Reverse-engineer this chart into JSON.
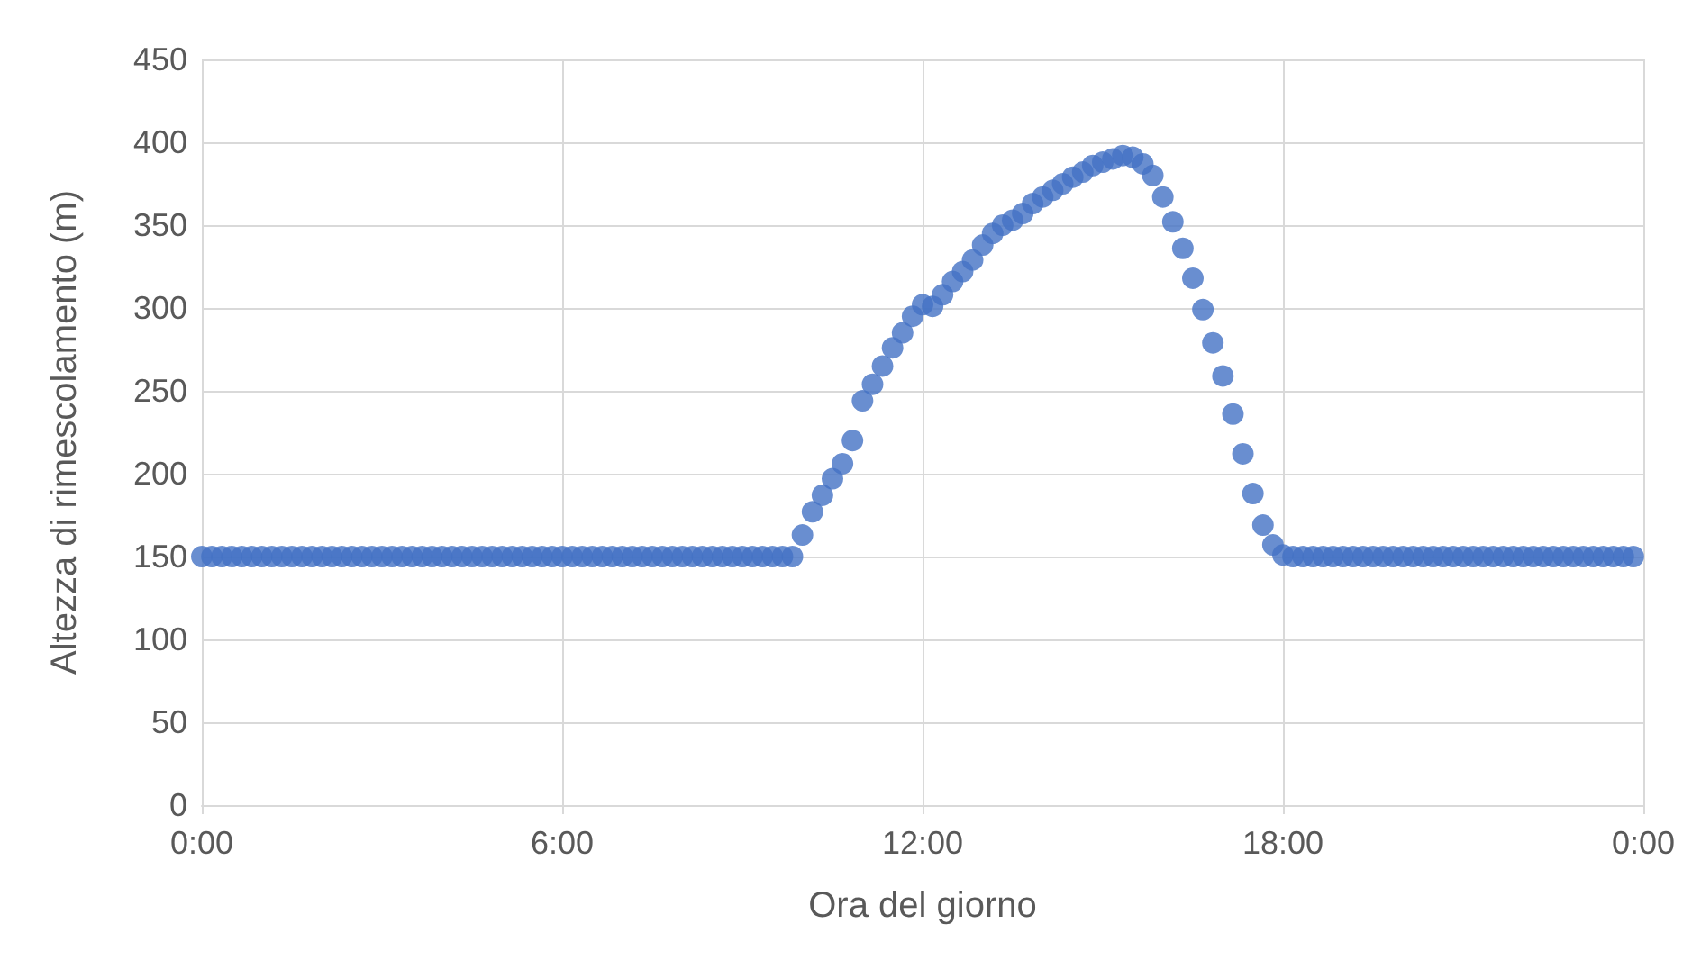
{
  "chart_data": {
    "type": "scatter",
    "xlabel": "Ora del giorno",
    "ylabel": "Altezza di rimescolamento (m)",
    "x": [
      0,
      0.167,
      0.333,
      0.5,
      0.667,
      0.833,
      1,
      1.167,
      1.333,
      1.5,
      1.667,
      1.833,
      2,
      2.167,
      2.333,
      2.5,
      2.667,
      2.833,
      3,
      3.167,
      3.333,
      3.5,
      3.667,
      3.833,
      4,
      4.167,
      4.333,
      4.5,
      4.667,
      4.833,
      5,
      5.167,
      5.333,
      5.5,
      5.667,
      5.833,
      6,
      6.167,
      6.333,
      6.5,
      6.667,
      6.833,
      7,
      7.167,
      7.333,
      7.5,
      7.667,
      7.833,
      8,
      8.167,
      8.333,
      8.5,
      8.667,
      8.833,
      9,
      9.167,
      9.333,
      9.5,
      9.667,
      9.833,
      10,
      10.167,
      10.333,
      10.5,
      10.667,
      10.833,
      11,
      11.167,
      11.333,
      11.5,
      11.667,
      11.833,
      12,
      12.167,
      12.333,
      12.5,
      12.667,
      12.833,
      13,
      13.167,
      13.333,
      13.5,
      13.667,
      13.833,
      14,
      14.167,
      14.333,
      14.5,
      14.667,
      14.833,
      15,
      15.167,
      15.333,
      15.5,
      15.667,
      15.833,
      16,
      16.167,
      16.333,
      16.5,
      16.667,
      16.833,
      17,
      17.167,
      17.333,
      17.5,
      17.667,
      17.833,
      18,
      18.167,
      18.333,
      18.5,
      18.667,
      18.833,
      19,
      19.167,
      19.333,
      19.5,
      19.667,
      19.833,
      20,
      20.167,
      20.333,
      20.5,
      20.667,
      20.833,
      21,
      21.167,
      21.333,
      21.5,
      21.667,
      21.833,
      22,
      22.167,
      22.333,
      22.5,
      22.667,
      22.833,
      23,
      23.167,
      23.333,
      23.5,
      23.667,
      23.833
    ],
    "series": [
      {
        "color": "#4472c4",
        "values": [
          150,
          150,
          150,
          150,
          150,
          150,
          150,
          150,
          150,
          150,
          150,
          150,
          150,
          150,
          150,
          150,
          150,
          150,
          150,
          150,
          150,
          150,
          150,
          150,
          150,
          150,
          150,
          150,
          150,
          150,
          150,
          150,
          150,
          150,
          150,
          150,
          150,
          150,
          150,
          150,
          150,
          150,
          150,
          150,
          150,
          150,
          150,
          150,
          150,
          150,
          150,
          150,
          150,
          150,
          150,
          150,
          150,
          150,
          150,
          150,
          163,
          177,
          187,
          197,
          206,
          220,
          244,
          254,
          265,
          276,
          285,
          295,
          302,
          301,
          308,
          316,
          322,
          329,
          338,
          345,
          350,
          353,
          357,
          363,
          367,
          371,
          375,
          379,
          382,
          386,
          388,
          390,
          392,
          391,
          387,
          380,
          367,
          352,
          336,
          318,
          299,
          279,
          259,
          236,
          212,
          188,
          169,
          157,
          151,
          150,
          150,
          150,
          150,
          150,
          150,
          150,
          150,
          150,
          150,
          150,
          150,
          150,
          150,
          150,
          150,
          150,
          150,
          150,
          150,
          150,
          150,
          150,
          150,
          150,
          150,
          150,
          150,
          150,
          150,
          150,
          150,
          150,
          150,
          150
        ]
      }
    ],
    "xlim": [
      0,
      24
    ],
    "xticks": [
      {
        "value": 0,
        "label": "0:00"
      },
      {
        "value": 6,
        "label": "6:00"
      },
      {
        "value": 12,
        "label": "12:00"
      },
      {
        "value": 18,
        "label": "18:00"
      },
      {
        "value": 24,
        "label": "0:00"
      }
    ],
    "ylim": [
      0,
      450
    ],
    "yticks": [
      0,
      50,
      100,
      150,
      200,
      250,
      300,
      350,
      400,
      450
    ],
    "grid": true,
    "marker": "circle"
  }
}
